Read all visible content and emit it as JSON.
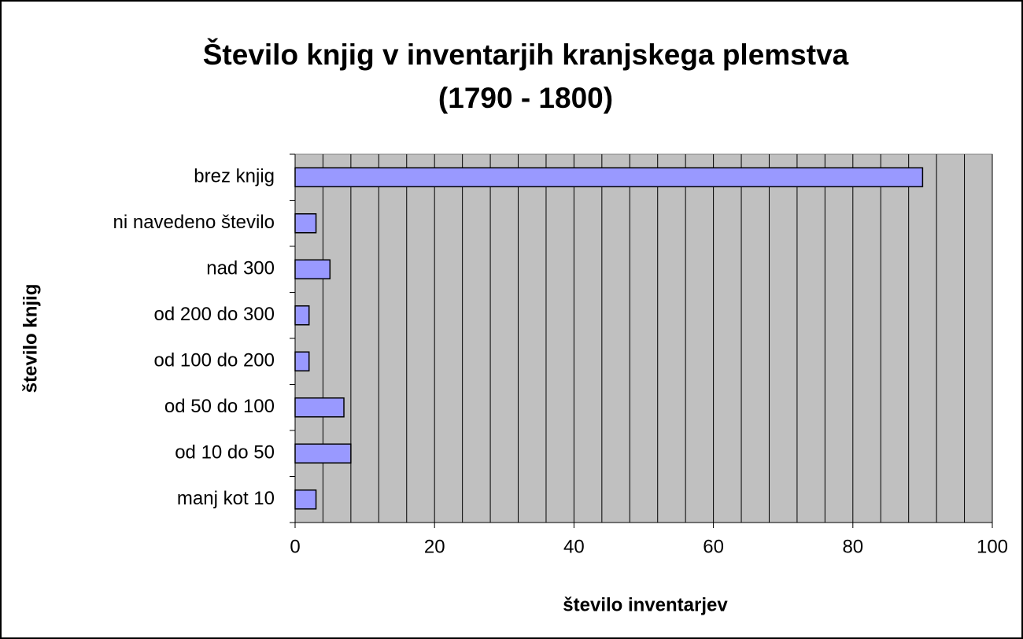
{
  "chart_data": {
    "type": "barh",
    "title": [
      "Število knjig v inventarjih kranjskega plemstva",
      "(1790 - 1800)"
    ],
    "xlabel": "število inventarjev",
    "ylabel": "število knjig",
    "categories": [
      "brez knjig",
      "ni navedeno število",
      "nad 300",
      "od 200 do 300",
      "od 100 do 200",
      "od 50 do 100",
      "od 10 do 50",
      "manj kot 10"
    ],
    "values": [
      90,
      3,
      5,
      2,
      2,
      7,
      8,
      3
    ],
    "color": "#9999ff",
    "xlim": [
      0,
      100
    ],
    "xticks": [
      0,
      20,
      40,
      60,
      80,
      100
    ],
    "xgrid": [
      0,
      4,
      8,
      12,
      16,
      20,
      24,
      28,
      32,
      36,
      40,
      44,
      48,
      52,
      56,
      60,
      64,
      68,
      72,
      76,
      80,
      84,
      88,
      92,
      96,
      100
    ],
    "grid": true
  }
}
